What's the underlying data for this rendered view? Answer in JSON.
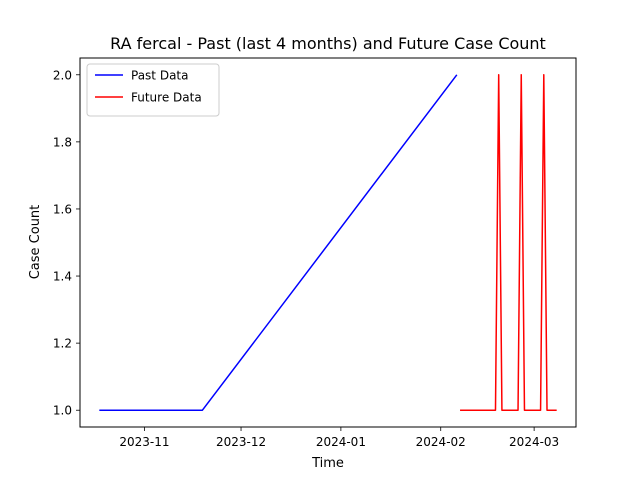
{
  "chart_data": {
    "type": "line",
    "title": "RA fercal - Past (last 4 months) and Future Case Count",
    "xlabel": "Time",
    "ylabel": "Case Count",
    "xlim": [
      "2023-10-12",
      "2024-03-14"
    ],
    "ylim": [
      0.95,
      2.05
    ],
    "x_ticks": [
      "2023-11-01",
      "2023-12-01",
      "2024-01-01",
      "2024-02-01",
      "2024-03-01"
    ],
    "x_tick_labels": [
      "2023-11",
      "2023-12",
      "2024-01",
      "2024-02",
      "2024-03"
    ],
    "y_ticks": [
      1.0,
      1.2,
      1.4,
      1.6,
      1.8,
      2.0
    ],
    "y_tick_labels": [
      "1.0",
      "1.2",
      "1.4",
      "1.6",
      "1.8",
      "2.0"
    ],
    "legend_position": "top-left",
    "grid": false,
    "series": [
      {
        "name": "Past Data",
        "color": "#0000ff",
        "points": [
          {
            "x": "2023-10-18",
            "y": 1
          },
          {
            "x": "2023-11-19",
            "y": 1
          },
          {
            "x": "2024-02-06",
            "y": 2
          }
        ]
      },
      {
        "name": "Future Data",
        "color": "#ff0000",
        "points": [
          {
            "x": "2024-02-07",
            "y": 1
          },
          {
            "x": "2024-02-18",
            "y": 1
          },
          {
            "x": "2024-02-19",
            "y": 2
          },
          {
            "x": "2024-02-20",
            "y": 1
          },
          {
            "x": "2024-02-25",
            "y": 1
          },
          {
            "x": "2024-02-26",
            "y": 2
          },
          {
            "x": "2024-02-27",
            "y": 1
          },
          {
            "x": "2024-03-03",
            "y": 1
          },
          {
            "x": "2024-03-04",
            "y": 2
          },
          {
            "x": "2024-03-05",
            "y": 1
          },
          {
            "x": "2024-03-08",
            "y": 1
          }
        ]
      }
    ]
  }
}
